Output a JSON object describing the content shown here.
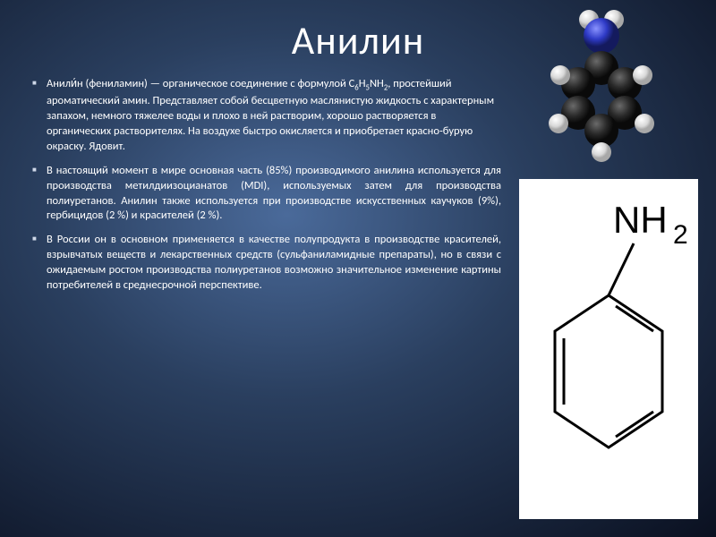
{
  "title": "Анилин",
  "paragraphs": [
    {
      "html": "Анили́н (фениламин)  — органическое соединение с формулой C<sub>6</sub>H<sub>5</sub>NH<sub>2</sub>, простейший ароматический амин. Представляет собой бесцветную маслянистую жидкость с характерным запахом, немного тяжелее воды и плохо в ней растворим, хорошо растворяется в органических растворителях. На воздухе быстро окисляется и приобретает красно-бурую окраску. Ядовит.",
      "justify": false
    },
    {
      "html": "В настоящий момент в мире основная часть (85%) производимого анилина используется для производства метилдиизоцианатов (MDI), используемых затем для производства полиуретанов. Анилин также используется при производстве искусственных каучуков (9%), гербицидов (2 %) и красителей (2 %).",
      "justify": true
    },
    {
      "html": "В России он в основном применяется в качестве полупродукта в производстве красителей, взрывчатых веществ и лекарственных средств (сульфаниламидные препараты), но в связи с ожидаемым ростом производства полиуретанов возможно значительное изменение картины потребителей в среднесрочной перспективе.",
      "justify": true
    }
  ],
  "molecule3d": {
    "nitrogen_color": "#2e3ac6",
    "carbon_color": "#2a2a2a",
    "hydrogen_color": "#e8e8e8",
    "highlight": "#ffffff"
  },
  "structural_formula": {
    "background": "#ffffff",
    "line_color": "#000000",
    "label": "NH",
    "label_sub": "2",
    "label_fontsize": 42,
    "line_width": 3
  }
}
